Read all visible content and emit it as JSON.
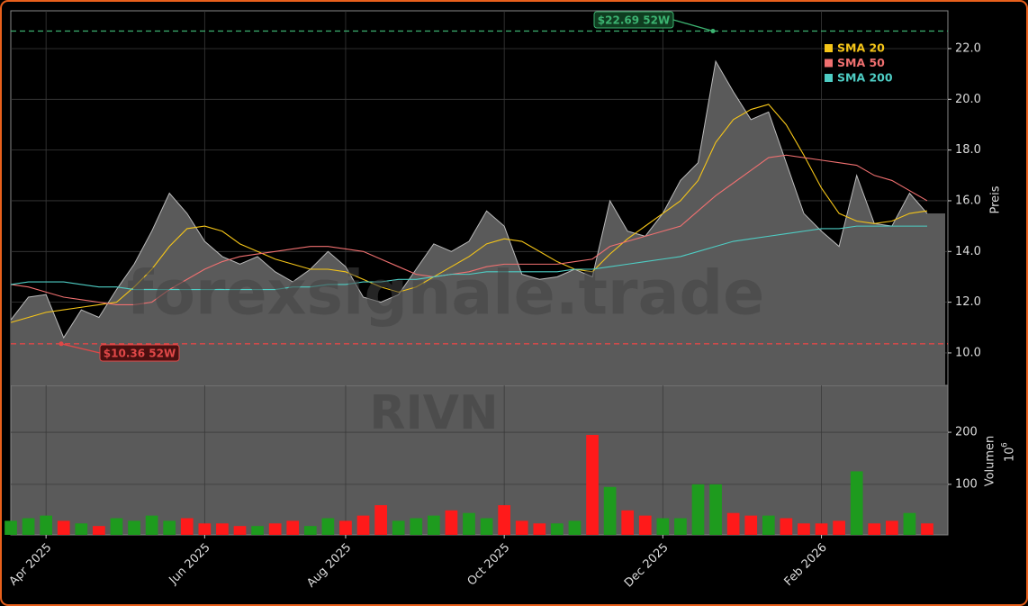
{
  "chart_data": {
    "type": "stock",
    "ticker": "RIVN",
    "watermark": "forexsignale.trade",
    "categories": [
      null,
      null,
      "Apr 2025",
      null,
      null,
      null,
      null,
      null,
      null,
      null,
      null,
      "Jun 2025",
      null,
      null,
      null,
      null,
      null,
      null,
      null,
      "Aug 2025",
      null,
      null,
      null,
      null,
      null,
      null,
      null,
      null,
      "Oct 2025",
      null,
      null,
      null,
      null,
      null,
      null,
      null,
      null,
      "Dec 2025",
      null,
      null,
      null,
      null,
      null,
      null,
      null,
      null,
      "Feb 2026",
      null,
      null,
      null,
      null,
      null,
      null
    ],
    "price": {
      "color": "#5a5a5a",
      "line_color": "#bbbbbb",
      "values": [
        11.3,
        12.2,
        12.3,
        10.6,
        11.7,
        11.4,
        12.5,
        13.5,
        14.8,
        16.3,
        15.5,
        14.4,
        13.8,
        13.5,
        13.8,
        13.2,
        12.8,
        13.3,
        14.0,
        13.4,
        12.2,
        12.0,
        12.3,
        13.3,
        14.3,
        14.0,
        14.4,
        15.6,
        15.0,
        13.1,
        12.9,
        13.0,
        13.3,
        13.0,
        16.0,
        14.8,
        14.6,
        15.5,
        16.8,
        17.5,
        21.5,
        20.3,
        19.2,
        19.5,
        17.5,
        15.5,
        14.8,
        14.2,
        17.0,
        15.1,
        15.0,
        16.3,
        15.5
      ]
    },
    "series": [
      {
        "name": "SMA 20",
        "color": "#f5c518",
        "values": [
          11.2,
          11.4,
          11.6,
          11.7,
          11.8,
          11.9,
          12.0,
          12.6,
          13.3,
          14.2,
          14.9,
          15.0,
          14.8,
          14.3,
          14.0,
          13.7,
          13.5,
          13.3,
          13.3,
          13.2,
          12.9,
          12.6,
          12.4,
          12.6,
          13.0,
          13.4,
          13.8,
          14.3,
          14.5,
          14.4,
          14.0,
          13.6,
          13.3,
          13.2,
          13.9,
          14.5,
          15.0,
          15.5,
          16.0,
          16.8,
          18.3,
          19.2,
          19.6,
          19.8,
          19.0,
          17.8,
          16.5,
          15.5,
          15.2,
          15.1,
          15.2,
          15.5,
          15.6
        ]
      },
      {
        "name": "SMA 50",
        "color": "#f07070",
        "values": [
          12.7,
          12.6,
          12.4,
          12.2,
          12.1,
          12.0,
          11.9,
          11.9,
          12.0,
          12.5,
          12.9,
          13.3,
          13.6,
          13.8,
          13.9,
          14.0,
          14.1,
          14.2,
          14.2,
          14.1,
          14.0,
          13.7,
          13.4,
          13.1,
          13.0,
          13.1,
          13.2,
          13.4,
          13.5,
          13.5,
          13.5,
          13.5,
          13.6,
          13.7,
          14.2,
          14.4,
          14.6,
          14.8,
          15.0,
          15.6,
          16.2,
          16.7,
          17.2,
          17.7,
          17.8,
          17.7,
          17.6,
          17.5,
          17.4,
          17.0,
          16.8,
          16.4,
          16.0
        ]
      },
      {
        "name": "SMA 200",
        "color": "#4ecdc4",
        "values": [
          12.7,
          12.8,
          12.8,
          12.8,
          12.7,
          12.6,
          12.6,
          12.5,
          12.5,
          12.5,
          12.5,
          12.5,
          12.5,
          12.5,
          12.5,
          12.5,
          12.6,
          12.6,
          12.7,
          12.7,
          12.8,
          12.8,
          12.9,
          12.9,
          13.0,
          13.1,
          13.1,
          13.2,
          13.2,
          13.2,
          13.2,
          13.2,
          13.3,
          13.3,
          13.4,
          13.5,
          13.6,
          13.7,
          13.8,
          14.0,
          14.2,
          14.4,
          14.5,
          14.6,
          14.7,
          14.8,
          14.9,
          14.9,
          15.0,
          15.0,
          15.0,
          15.0,
          15.0
        ]
      }
    ],
    "ylabel": "Preis",
    "ylim": [
      8.72,
      23.49
    ],
    "yticks": [
      {
        "value": 10,
        "label": "10.0"
      },
      {
        "value": 12,
        "label": "12.0"
      },
      {
        "value": 14,
        "label": "14.0"
      },
      {
        "value": 16,
        "label": "16.0"
      },
      {
        "value": 18,
        "label": "18.0"
      },
      {
        "value": 20,
        "label": "20.0"
      },
      {
        "value": 22,
        "label": "22.0"
      }
    ],
    "high": {
      "value": 22.69,
      "label": "$22.69 52W",
      "color": "#3cb371"
    },
    "low": {
      "value": 10.36,
      "label": "$10.36 52W",
      "color": "#e04848"
    },
    "volume": {
      "ylabel": "Volumen",
      "unit": "10",
      "unit_exp": "6",
      "up_color": "#1e9b1e",
      "down_color": "#ff1a1a",
      "values": [
        30,
        35,
        40,
        30,
        25,
        20,
        35,
        30,
        40,
        30,
        35,
        25,
        25,
        20,
        20,
        25,
        30,
        20,
        35,
        30,
        40,
        60,
        30,
        35,
        40,
        50,
        45,
        35,
        60,
        30,
        25,
        25,
        30,
        195,
        95,
        50,
        40,
        35,
        35,
        100,
        100,
        45,
        40,
        40,
        35,
        25,
        25,
        30,
        125,
        25,
        30,
        45,
        25
      ],
      "ylim": [
        3,
        290
      ],
      "yticks": [
        100,
        200
      ]
    },
    "grid": true,
    "legend": "upper right"
  }
}
